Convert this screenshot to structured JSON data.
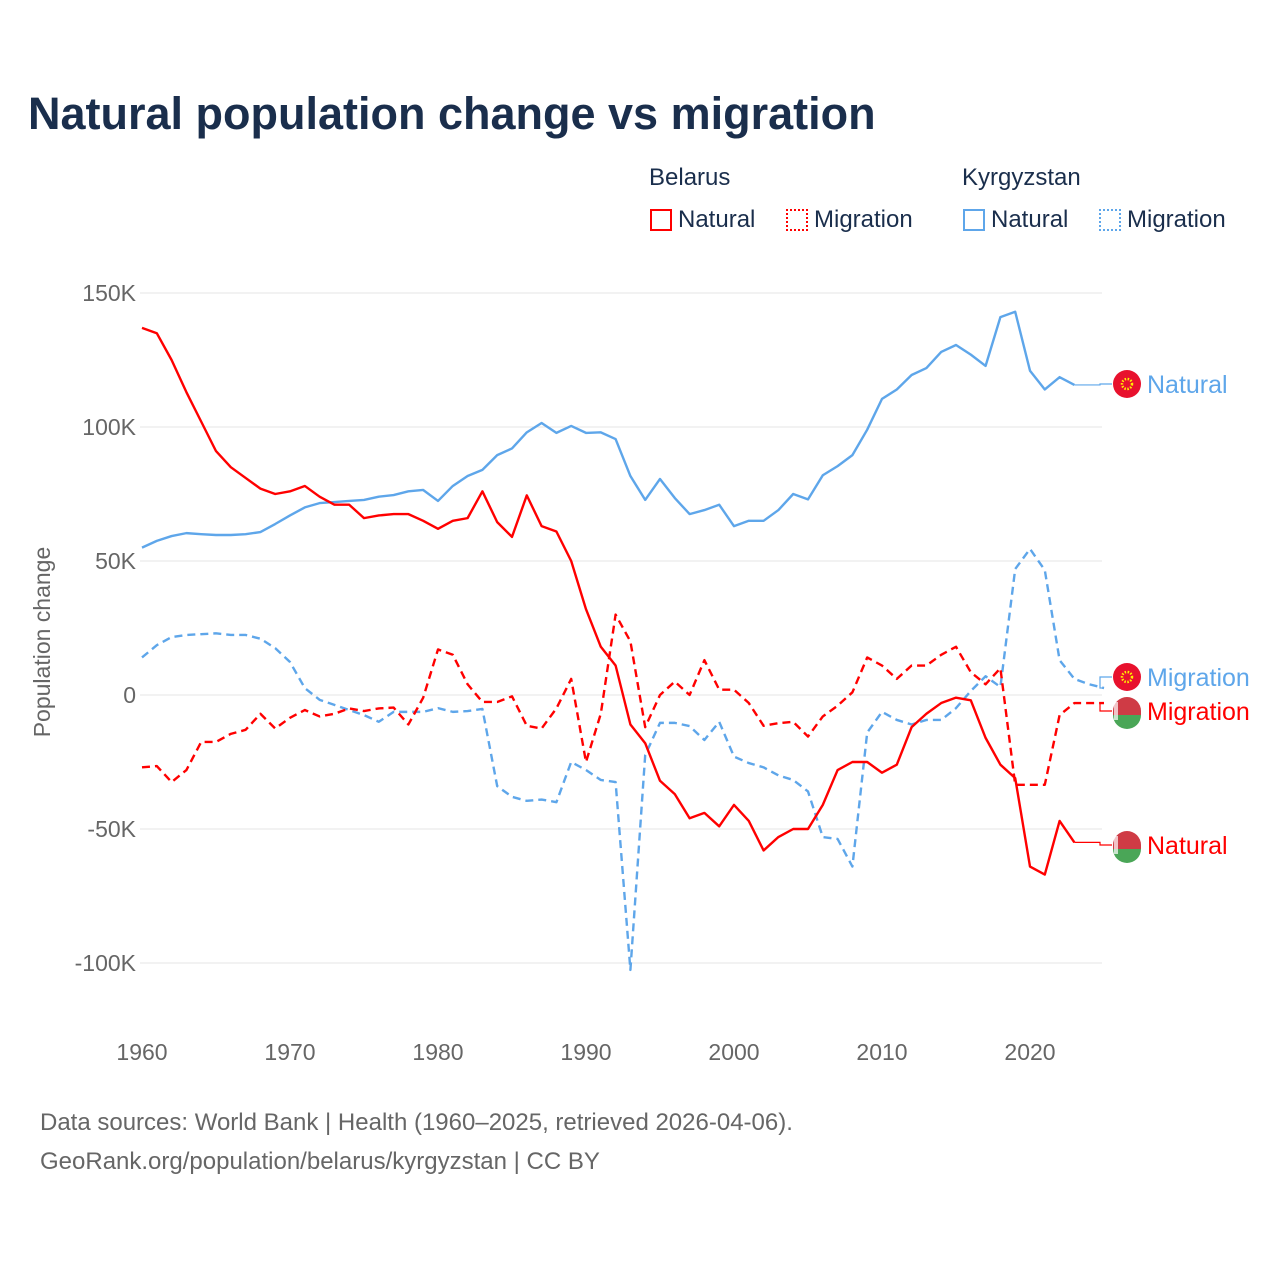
{
  "chart_data": {
    "type": "line",
    "title": "Natural population change vs migration",
    "xlabel": "",
    "ylabel": "Population change",
    "xlim": [
      1960,
      2025
    ],
    "ylim": [
      -100000,
      150000
    ],
    "x_ticks": [
      "1960",
      "1970",
      "1980",
      "1990",
      "2000",
      "2010",
      "2020"
    ],
    "y_ticks": [
      {
        "value": 150000,
        "label": "150K"
      },
      {
        "value": 100000,
        "label": "100K"
      },
      {
        "value": 50000,
        "label": "50K"
      },
      {
        "value": 0,
        "label": "0"
      },
      {
        "value": -50000,
        "label": "-50K"
      },
      {
        "value": -100000,
        "label": "-100K"
      }
    ],
    "grid": true,
    "legend": {
      "placement": "top-right",
      "groups": [
        {
          "country": "Belarus",
          "items": [
            "Natural",
            "Migration"
          ]
        },
        {
          "country": "Kyrgyzstan",
          "items": [
            "Natural",
            "Migration"
          ]
        }
      ]
    },
    "series": [
      {
        "name": "Kyrgyzstan Natural",
        "country": "Kyrgyzstan",
        "kind": "Natural",
        "color": "#5ea6ea",
        "dashed": false,
        "start": 1960,
        "end_label": "Natural",
        "values": [
          55,
          57.5,
          59.3,
          60.4,
          60,
          59.7,
          59.7,
          60,
          60.8,
          63.8,
          67,
          70,
          71.6,
          72,
          72.4,
          72.8,
          74,
          74.6,
          76,
          76.5,
          72.4,
          78,
          81.7,
          84,
          89.5,
          92,
          98,
          101.5,
          97.8,
          100.4,
          97.8,
          98,
          95.5,
          81.7,
          72.8,
          80.6,
          73.5,
          67.5,
          69,
          71,
          63,
          65,
          65,
          69,
          75,
          73,
          82,
          85.4,
          89.5,
          99,
          110.5,
          114,
          119.4,
          122,
          128,
          130.6,
          127,
          122.8,
          141,
          143,
          121,
          114,
          118.6,
          115.7
        ]
      },
      {
        "name": "Kyrgyzstan Migration",
        "country": "Kyrgyzstan",
        "kind": "Migration",
        "color": "#5ea6ea",
        "dashed": true,
        "start": 1960,
        "end_label": "Migration",
        "values": [
          14,
          18.6,
          21.6,
          22.4,
          22.7,
          23,
          22.4,
          22.4,
          21,
          17.5,
          12.3,
          2.6,
          -1.8,
          -3.7,
          -5.6,
          -7.5,
          -10,
          -6.3,
          -6.3,
          -6.3,
          -4.9,
          -6.3,
          -6,
          -5.2,
          -34,
          -38,
          -39.5,
          -39,
          -40,
          -25,
          -28,
          -31.7,
          -32.5,
          -102.6,
          -22.4,
          -10.4,
          -10.4,
          -11.6,
          -16.8,
          -10,
          -23,
          -25.4,
          -27,
          -30,
          -31.7,
          -36,
          -53,
          -53.7,
          -64,
          -14,
          -6.3,
          -9.3,
          -11,
          -9.3,
          -9.3,
          -4.9,
          1.5,
          7,
          3,
          47,
          54.5,
          46.6,
          13,
          6,
          4,
          2.6
        ]
      },
      {
        "name": "Belarus Migration",
        "country": "Belarus",
        "kind": "Migration",
        "color": "#ff0000",
        "dashed": true,
        "start": 1960,
        "end_label": "Migration",
        "values": [
          -27,
          -26.5,
          -32.5,
          -28,
          -17.5,
          -17.5,
          -14.5,
          -13,
          -7,
          -12.5,
          -8.5,
          -5.6,
          -8,
          -7,
          -5,
          -6,
          -5,
          -4.7,
          -11,
          -1,
          17,
          15,
          4,
          -2.6,
          -2.6,
          -0.5,
          -11.5,
          -12.5,
          -5,
          6,
          -25,
          -7,
          30,
          20,
          -12,
          0,
          5,
          0,
          13,
          2,
          2,
          -3,
          -11.5,
          -10.5,
          -10,
          -15.5,
          -8,
          -4,
          1,
          14,
          11,
          6,
          11,
          11,
          15,
          18,
          8.5,
          4,
          10,
          -33.5,
          -33.5,
          -33.5,
          -7.5,
          -3,
          -3,
          -3
        ]
      },
      {
        "name": "Belarus Natural",
        "country": "Belarus",
        "kind": "Natural",
        "color": "#ff0000",
        "dashed": false,
        "start": 1960,
        "end_label": "Natural",
        "values": [
          137,
          135,
          125,
          113,
          102,
          91,
          85,
          81,
          77,
          75,
          76,
          78,
          74,
          71,
          71,
          66,
          67,
          67.5,
          67.5,
          65,
          62,
          65,
          66,
          76,
          64.5,
          59,
          74.5,
          63,
          61,
          50,
          32,
          18,
          11,
          -11,
          -18,
          -32,
          -37,
          -46,
          -44,
          -49,
          -41,
          -47,
          -58,
          -53,
          -50,
          -50,
          -41,
          -28,
          -25,
          -25,
          -29,
          -26,
          -12,
          -7,
          -3,
          -1,
          -2,
          -16,
          -26,
          -31,
          -64,
          -67,
          -47,
          -55
        ]
      }
    ],
    "value_unit": "thousands"
  },
  "footer": {
    "line1": "Data sources: World Bank | Health (1960–2025, retrieved 2026-04-06).",
    "line2": "GeoRank.org/population/belarus/kyrgyzstan | CC BY"
  }
}
